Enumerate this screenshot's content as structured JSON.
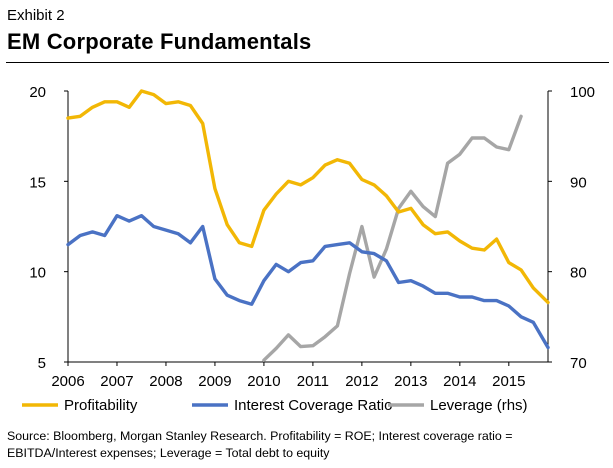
{
  "header": {
    "exhibit": "Exhibit 2",
    "title": "EM Corporate Fundamentals"
  },
  "source": {
    "line1": "Source: Bloomberg, Morgan Stanley Research.  Profitability = ROE; Interest coverage ratio =",
    "line2": "EBITDA/Interest expenses; Leverage = Total debt to equity"
  },
  "chart_data": {
    "type": "line",
    "title": "EM Corporate Fundamentals",
    "x_ticks": [
      "2006",
      "2007",
      "2008",
      "2009",
      "2010",
      "2011",
      "2012",
      "2013",
      "2014",
      "2015"
    ],
    "xlim": [
      2006.0,
      2015.8
    ],
    "y_left": {
      "ticks": [
        "20",
        "15",
        "10",
        "5"
      ],
      "ylim": [
        5,
        20
      ]
    },
    "y_right": {
      "ticks": [
        "100",
        "90",
        "80",
        "70"
      ],
      "ylim": [
        70,
        100
      ]
    },
    "grid": false,
    "legend_position": "bottom",
    "series": [
      {
        "name": "Profitability",
        "axis": "left",
        "color": "#f2b705",
        "x": [
          2006.0,
          2006.25,
          2006.5,
          2006.75,
          2007.0,
          2007.25,
          2007.5,
          2007.75,
          2008.0,
          2008.25,
          2008.5,
          2008.75,
          2009.0,
          2009.25,
          2009.5,
          2009.75,
          2010.0,
          2010.25,
          2010.5,
          2010.75,
          2011.0,
          2011.25,
          2011.5,
          2011.75,
          2012.0,
          2012.25,
          2012.5,
          2012.75,
          2013.0,
          2013.25,
          2013.5,
          2013.75,
          2014.0,
          2014.25,
          2014.5,
          2014.75,
          2015.0,
          2015.25,
          2015.5,
          2015.8
        ],
        "values": [
          18.5,
          18.6,
          19.1,
          19.4,
          19.4,
          19.1,
          20.0,
          19.8,
          19.3,
          19.4,
          19.2,
          18.2,
          14.6,
          12.6,
          11.6,
          11.4,
          13.4,
          14.3,
          15.0,
          14.8,
          15.2,
          15.9,
          16.2,
          16.0,
          15.1,
          14.8,
          14.2,
          13.3,
          13.5,
          12.6,
          12.1,
          12.2,
          11.7,
          11.3,
          11.2,
          11.8,
          10.5,
          10.1,
          9.1,
          8.3
        ]
      },
      {
        "name": "Interest Coverage Ratio",
        "axis": "left",
        "color": "#4a72c4",
        "x": [
          2006.0,
          2006.25,
          2006.5,
          2006.75,
          2007.0,
          2007.25,
          2007.5,
          2007.75,
          2008.0,
          2008.25,
          2008.5,
          2008.75,
          2009.0,
          2009.25,
          2009.5,
          2009.75,
          2010.0,
          2010.25,
          2010.5,
          2010.75,
          2011.0,
          2011.25,
          2011.5,
          2011.75,
          2012.0,
          2012.25,
          2012.5,
          2012.75,
          2013.0,
          2013.25,
          2013.5,
          2013.75,
          2014.0,
          2014.25,
          2014.5,
          2014.75,
          2015.0,
          2015.25,
          2015.5,
          2015.8
        ],
        "values": [
          11.5,
          12.0,
          12.2,
          12.0,
          13.1,
          12.8,
          13.1,
          12.5,
          12.3,
          12.1,
          11.6,
          12.5,
          9.6,
          8.7,
          8.4,
          8.2,
          9.5,
          10.4,
          10.0,
          10.5,
          10.6,
          11.4,
          11.5,
          11.6,
          11.1,
          11.0,
          10.6,
          9.4,
          9.5,
          9.2,
          8.8,
          8.8,
          8.6,
          8.6,
          8.4,
          8.4,
          8.1,
          7.5,
          7.2,
          5.8
        ]
      },
      {
        "name": "Leverage (rhs)",
        "axis": "right",
        "color": "#a6a6a6",
        "x": [
          2010.0,
          2010.25,
          2010.5,
          2010.75,
          2011.0,
          2011.25,
          2011.5,
          2011.75,
          2012.0,
          2012.25,
          2012.5,
          2012.75,
          2013.0,
          2013.25,
          2013.5,
          2013.75,
          2014.0,
          2014.25,
          2014.5,
          2014.75,
          2015.0,
          2015.25
        ],
        "values": [
          70.2,
          71.5,
          73.0,
          71.7,
          71.8,
          72.8,
          74.0,
          79.8,
          85.0,
          79.4,
          82.5,
          87.0,
          88.9,
          87.2,
          86.1,
          92.0,
          93.0,
          94.8,
          94.8,
          93.8,
          93.5,
          97.2
        ]
      }
    ]
  }
}
